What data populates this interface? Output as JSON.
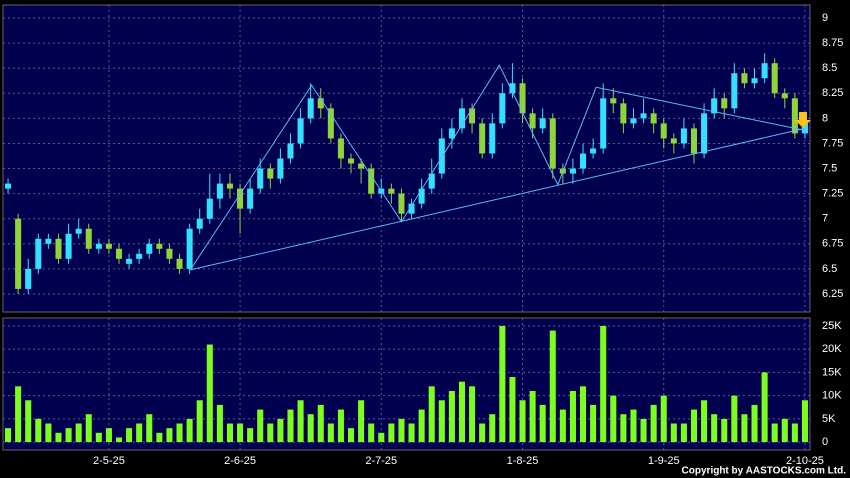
{
  "chart_data": {
    "type": "candlestick",
    "up_color": "#33e0ff",
    "down_color": "#8fd43a",
    "volume_color": "#7cff1e",
    "line_color": "#5ab8ff",
    "grid": true,
    "xlim": [
      -0.5,
      79.5
    ],
    "xticks": [
      {
        "value": 10,
        "label": "2-5-25"
      },
      {
        "value": 23,
        "label": "2-6-25"
      },
      {
        "value": 37,
        "label": "2-7-25"
      },
      {
        "value": 51,
        "label": "1-8-25"
      },
      {
        "value": 65,
        "label": "1-9-25"
      },
      {
        "value": 79,
        "label": "2-10-25"
      }
    ],
    "ylim": [
      6.07,
      9.13
    ],
    "yticks": [
      6.25,
      6.5,
      6.75,
      7,
      7.25,
      7.5,
      7.75,
      8,
      8.25,
      8.5,
      8.75,
      9
    ],
    "open": [
      7.3,
      7.0,
      6.3,
      6.5,
      6.75,
      6.8,
      6.6,
      6.85,
      6.9,
      6.7,
      6.75,
      6.7,
      6.55,
      6.6,
      6.65,
      6.75,
      6.7,
      6.6,
      6.5,
      6.9,
      7.0,
      7.2,
      7.35,
      7.3,
      7.1,
      7.3,
      7.5,
      7.4,
      7.6,
      7.75,
      8.0,
      8.2,
      8.1,
      7.8,
      7.6,
      7.55,
      7.5,
      7.25,
      7.3,
      7.25,
      7.05,
      7.15,
      7.3,
      7.45,
      7.8,
      7.9,
      8.1,
      7.95,
      7.65,
      7.95,
      8.25,
      8.35,
      8.05,
      7.9,
      8.0,
      7.5,
      7.45,
      7.5,
      7.65,
      7.7,
      8.2,
      8.15,
      7.95,
      8.0,
      8.05,
      7.95,
      7.8,
      7.75,
      7.9,
      7.65,
      8.05,
      8.2,
      8.1,
      8.45,
      8.35,
      8.4,
      8.55,
      8.25,
      8.2,
      7.85
    ],
    "high": [
      7.4,
      7.05,
      6.6,
      6.85,
      6.85,
      6.85,
      6.95,
      7.0,
      6.95,
      6.8,
      6.8,
      6.75,
      6.65,
      6.7,
      6.8,
      6.8,
      6.75,
      6.65,
      6.95,
      7.1,
      7.45,
      7.45,
      7.45,
      7.35,
      7.4,
      7.6,
      7.55,
      7.7,
      7.85,
      8.1,
      8.35,
      8.3,
      8.15,
      7.85,
      7.65,
      7.6,
      7.55,
      7.4,
      7.35,
      7.3,
      7.2,
      7.4,
      7.6,
      7.9,
      8.0,
      8.2,
      8.15,
      8.0,
      8.05,
      8.35,
      8.55,
      8.4,
      8.1,
      8.1,
      8.05,
      7.55,
      7.6,
      7.75,
      7.8,
      8.35,
      8.3,
      8.2,
      8.1,
      8.2,
      8.1,
      8.0,
      7.85,
      8.0,
      7.95,
      8.15,
      8.3,
      8.25,
      8.55,
      8.5,
      8.5,
      8.65,
      8.6,
      8.3,
      8.25,
      8.0
    ],
    "low": [
      7.25,
      6.25,
      6.25,
      6.45,
      6.7,
      6.55,
      6.55,
      6.8,
      6.65,
      6.65,
      6.65,
      6.55,
      6.5,
      6.55,
      6.6,
      6.65,
      6.55,
      6.45,
      6.45,
      6.85,
      6.95,
      7.1,
      7.2,
      6.85,
      7.05,
      7.25,
      7.3,
      7.35,
      7.55,
      7.7,
      7.95,
      8.0,
      7.75,
      7.5,
      7.45,
      7.35,
      7.2,
      7.2,
      7.15,
      6.98,
      7.0,
      7.1,
      7.25,
      7.4,
      7.7,
      7.85,
      7.85,
      7.6,
      7.6,
      7.9,
      8.2,
      7.95,
      7.8,
      7.85,
      7.4,
      7.35,
      7.35,
      7.45,
      7.6,
      7.65,
      8.05,
      7.85,
      7.9,
      7.95,
      7.85,
      7.7,
      7.65,
      7.7,
      7.55,
      7.6,
      8.0,
      8.0,
      8.05,
      8.3,
      8.3,
      8.35,
      8.2,
      8.1,
      7.8,
      7.8
    ],
    "close": [
      7.35,
      6.3,
      6.5,
      6.8,
      6.8,
      6.6,
      6.85,
      6.9,
      6.7,
      6.75,
      6.7,
      6.6,
      6.6,
      6.65,
      6.75,
      6.7,
      6.6,
      6.5,
      6.9,
      7.0,
      7.2,
      7.35,
      7.3,
      7.1,
      7.3,
      7.5,
      7.4,
      7.6,
      7.75,
      8.0,
      8.2,
      8.1,
      7.8,
      7.6,
      7.55,
      7.5,
      7.25,
      7.3,
      7.25,
      7.05,
      7.15,
      7.3,
      7.45,
      7.8,
      7.9,
      8.1,
      7.95,
      7.65,
      7.95,
      8.25,
      8.35,
      8.05,
      7.9,
      8.0,
      7.5,
      7.45,
      7.5,
      7.65,
      7.7,
      8.2,
      8.15,
      7.95,
      8.0,
      8.05,
      7.95,
      7.8,
      7.75,
      7.9,
      7.65,
      8.05,
      8.2,
      8.1,
      8.45,
      8.35,
      8.4,
      8.55,
      8.25,
      8.2,
      7.85,
      7.95
    ],
    "volume": [
      3000,
      12000,
      9000,
      5000,
      4000,
      2000,
      3000,
      4000,
      6000,
      2000,
      3000,
      1000,
      3000,
      4000,
      6000,
      2000,
      3000,
      4000,
      5000,
      9000,
      21000,
      8000,
      4000,
      4000,
      3000,
      7000,
      4000,
      5000,
      7000,
      9000,
      6000,
      8000,
      4000,
      7000,
      3000,
      9000,
      4000,
      2000,
      4000,
      5000,
      4000,
      7000,
      12000,
      9000,
      11000,
      13000,
      12000,
      4000,
      6000,
      25000,
      14000,
      9000,
      11000,
      8000,
      24000,
      7000,
      11000,
      12000,
      8000,
      25000,
      10000,
      6000,
      7000,
      5000,
      8000,
      10000,
      4000,
      4000,
      7000,
      9000,
      6000,
      5000,
      10000,
      6000,
      8000,
      15000,
      4000,
      5000,
      4000,
      9000
    ],
    "vlim": [
      -1700,
      26700
    ],
    "vticks": [
      0,
      {
        "value": 5000,
        "label": "5K"
      },
      {
        "value": 10000,
        "label": "10K"
      },
      {
        "value": 15000,
        "label": "15K"
      },
      {
        "value": 20000,
        "label": "20K"
      },
      {
        "value": 25000,
        "label": "25K"
      }
    ],
    "trendlines": [
      {
        "x": [
          18.07,
          30.1,
          39.0,
          48.7,
          54.5,
          58.3,
          79.0
        ],
        "y": [
          6.49,
          8.33,
          6.97,
          8.53,
          7.34,
          8.31,
          7.88
        ]
      },
      {
        "x": [
          18.07,
          79.0
        ],
        "y": [
          6.49,
          7.9
        ]
      }
    ],
    "copyright": "Copyright by AASTOCKS.com Ltd."
  }
}
